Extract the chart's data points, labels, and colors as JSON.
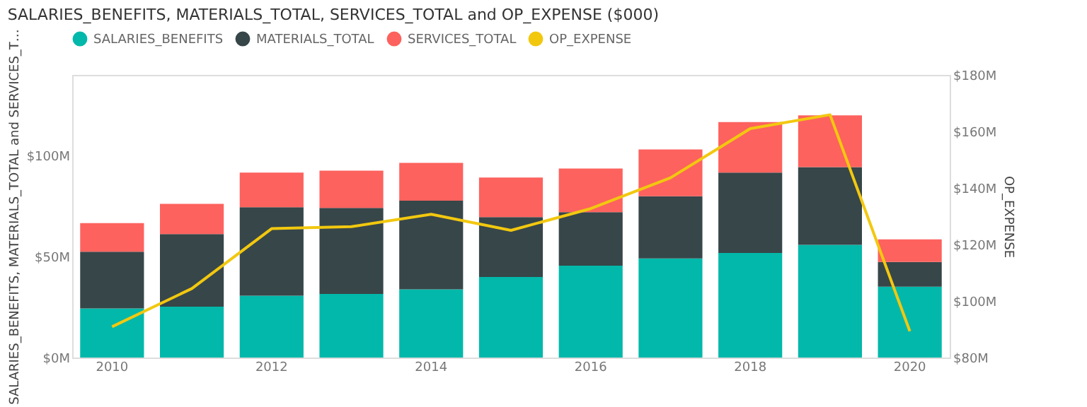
{
  "chart_data": {
    "type": "bar",
    "stacked": true,
    "title": "SALARIES_BENEFITS, MATERIALS_TOTAL, SERVICES_TOTAL and OP_EXPENSE ($000)",
    "ylabel": "SALARIES_BENEFITS, MATERIALS_TOTAL and SERVICES_T…",
    "y2label": "OP_EXPENSE",
    "categories": [
      "2010",
      null,
      "2012",
      null,
      "2014",
      null,
      "2016",
      null,
      "2018",
      null,
      "2020"
    ],
    "series": [
      {
        "name": "SALARIES_BENEFITS",
        "color": "#01b8aa",
        "values": [
          24.3,
          25.2,
          30.6,
          31.5,
          33.8,
          39.9,
          45.5,
          49.1,
          51.8,
          55.8,
          35.1
        ]
      },
      {
        "name": "MATERIALS_TOTAL",
        "color": "#374649",
        "values": [
          28.1,
          36.0,
          43.9,
          42.6,
          43.9,
          29.7,
          26.5,
          30.8,
          39.8,
          38.5,
          12.2
        ]
      },
      {
        "name": "SERVICES_TOTAL",
        "color": "#fd625e",
        "values": [
          14.2,
          14.9,
          17.1,
          18.5,
          18.7,
          19.6,
          21.6,
          23.2,
          25.0,
          25.7,
          11.2
        ]
      },
      {
        "name": "OP_EXPENSE",
        "color": "#f2c80f",
        "type": "line",
        "axis": "y2",
        "values": [
          90.9,
          104.4,
          125.6,
          126.3,
          130.7,
          125.0,
          132.7,
          143.6,
          161.0,
          165.9,
          89.3
        ]
      }
    ],
    "ylim": [
      0,
      140
    ],
    "yticks": [
      {
        "value": 0,
        "label": "$0M"
      },
      {
        "value": 50,
        "label": "$50M"
      },
      {
        "value": 100,
        "label": "$100M"
      }
    ],
    "y2lim": [
      80,
      180
    ],
    "y2ticks": [
      {
        "value": 80,
        "label": "$80M"
      },
      {
        "value": 100,
        "label": "$100M"
      },
      {
        "value": 120,
        "label": "$120M"
      },
      {
        "value": 140,
        "label": "$140M"
      },
      {
        "value": 160,
        "label": "$160M"
      },
      {
        "value": 180,
        "label": "$180M"
      }
    ],
    "grid": false,
    "legend": "top left",
    "marker": "none",
    "line_style": "solid"
  }
}
